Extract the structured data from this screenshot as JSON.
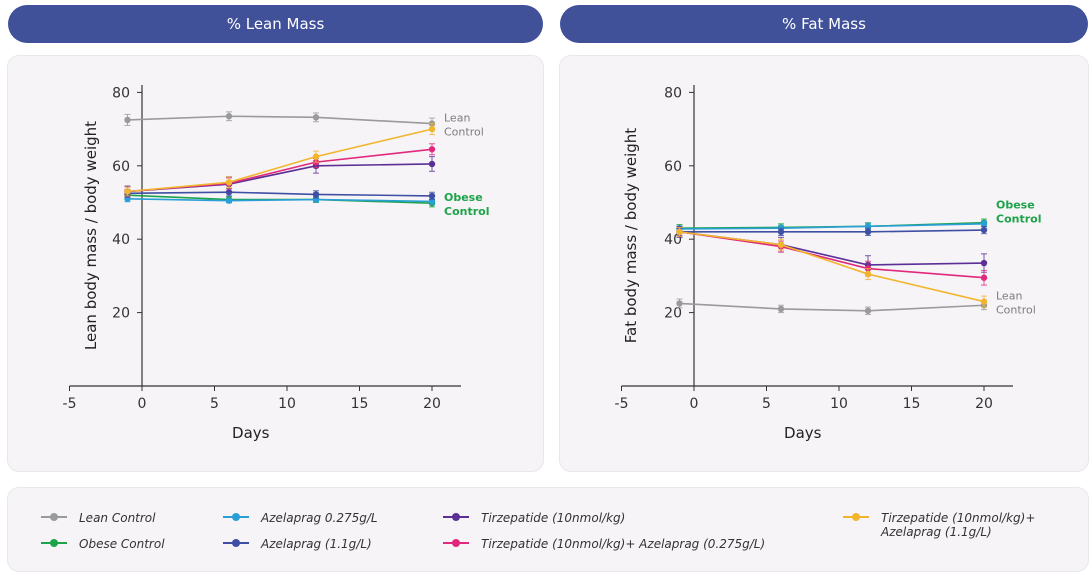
{
  "banners": {
    "left": "% Lean Mass",
    "right": "% Fat Mass"
  },
  "chart_data": [
    {
      "type": "line",
      "title": "% Lean Mass",
      "xlabel": "Days",
      "ylabel": "Lean body mass / body weight",
      "xlim": [
        -5,
        22
      ],
      "ylim": [
        0,
        82
      ],
      "xticks": [
        "-5",
        "0",
        "5",
        "10",
        "15",
        "20"
      ],
      "yticks": [
        "20",
        "40",
        "60",
        "80"
      ],
      "x": [
        -1,
        6,
        12,
        20
      ],
      "annotations": [
        {
          "text": "Lean\nControl",
          "series": "Lean Control"
        },
        {
          "text": "Obese\nControl",
          "series": "Obese Control"
        }
      ],
      "series": [
        {
          "name": "Lean Control",
          "color": "#9a9a9a",
          "values": [
            72.5,
            73.5,
            73.2,
            71.5
          ],
          "errors": [
            1.5,
            1.2,
            1.2,
            1.5
          ]
        },
        {
          "name": "Obese Control",
          "color": "#1da34a",
          "values": [
            52.0,
            50.8,
            50.8,
            49.8
          ],
          "errors": [
            1.2,
            0.8,
            0.8,
            1.0
          ]
        },
        {
          "name": "Azelaprag 0.275g/L",
          "color": "#2a9fd6",
          "values": [
            51.0,
            50.5,
            50.8,
            50.3
          ],
          "errors": [
            0.8,
            0.6,
            0.6,
            0.8
          ]
        },
        {
          "name": "Azelaprag (1.1g/L)",
          "color": "#3f4fa3",
          "values": [
            52.5,
            52.8,
            52.2,
            51.8
          ],
          "errors": [
            1.0,
            1.0,
            1.0,
            1.0
          ]
        },
        {
          "name": "Tirzepatide (10nmol/kg)",
          "color": "#5b2f96",
          "values": [
            53.0,
            55.0,
            60.0,
            60.5
          ],
          "errors": [
            1.5,
            2.0,
            2.0,
            2.0
          ]
        },
        {
          "name": "Tirzepatide (10nmol/kg)+ Azelaprag (0.275g/L)",
          "color": "#e0297c",
          "values": [
            53.0,
            55.2,
            61.0,
            64.5
          ],
          "errors": [
            1.2,
            1.5,
            1.5,
            1.5
          ]
        },
        {
          "name": "Tirzepatide (10nmol/kg)+ Azelaprag (1.1g/L)",
          "color": "#f2b52e",
          "values": [
            53.0,
            55.5,
            62.5,
            70.0
          ],
          "errors": [
            1.2,
            1.5,
            1.5,
            1.5
          ]
        }
      ]
    },
    {
      "type": "line",
      "title": "% Fat Mass",
      "xlabel": "Days",
      "ylabel": "Fat body mass / body weight",
      "xlim": [
        -5,
        22
      ],
      "ylim": [
        0,
        82
      ],
      "xticks": [
        "-5",
        "0",
        "5",
        "10",
        "15",
        "20"
      ],
      "yticks": [
        "20",
        "40",
        "60",
        "80"
      ],
      "x": [
        -1,
        6,
        12,
        20
      ],
      "annotations": [
        {
          "text": "Obese\nControl",
          "series": "Obese Control"
        },
        {
          "text": "Lean\nControl",
          "series": "Lean Control"
        }
      ],
      "series": [
        {
          "name": "Lean Control",
          "color": "#9a9a9a",
          "values": [
            22.5,
            21.0,
            20.5,
            22.0
          ],
          "errors": [
            1.2,
            1.0,
            1.0,
            1.2
          ]
        },
        {
          "name": "Obese Control",
          "color": "#1da34a",
          "values": [
            43.0,
            43.2,
            43.5,
            44.5
          ],
          "errors": [
            1.0,
            1.0,
            1.0,
            1.0
          ]
        },
        {
          "name": "Azelaprag 0.275g/L",
          "color": "#2a9fd6",
          "values": [
            42.8,
            43.0,
            43.5,
            44.2
          ],
          "errors": [
            0.8,
            0.8,
            0.8,
            0.8
          ]
        },
        {
          "name": "Azelaprag (1.1g/L)",
          "color": "#3f4fa3",
          "values": [
            42.0,
            42.0,
            42.0,
            42.5
          ],
          "errors": [
            1.0,
            1.0,
            1.0,
            1.0
          ]
        },
        {
          "name": "Tirzepatide (10nmol/kg)",
          "color": "#5b2f96",
          "values": [
            42.0,
            38.5,
            33.0,
            33.5
          ],
          "errors": [
            1.5,
            2.0,
            2.5,
            2.5
          ]
        },
        {
          "name": "Tirzepatide (10nmol/kg)+ Azelaprag (0.275g/L)",
          "color": "#e0297c",
          "values": [
            42.0,
            38.0,
            32.0,
            29.5
          ],
          "errors": [
            1.2,
            1.5,
            2.0,
            2.0
          ]
        },
        {
          "name": "Tirzepatide (10nmol/kg)+ Azelaprag (1.1g/L)",
          "color": "#f2b52e",
          "values": [
            42.0,
            38.5,
            30.5,
            23.0
          ],
          "errors": [
            1.2,
            1.5,
            1.5,
            1.5
          ]
        }
      ]
    }
  ],
  "legend": {
    "items": [
      {
        "label": "Lean Control",
        "color": "#9a9a9a"
      },
      {
        "label": "Obese Control",
        "color": "#1da34a"
      },
      {
        "label": "Azelaprag 0.275g/L",
        "color": "#2a9fd6"
      },
      {
        "label": "Azelaprag (1.1g/L)",
        "color": "#3f4fa3"
      },
      {
        "label": "Tirzepatide (10nmol/kg)",
        "color": "#5b2f96"
      },
      {
        "label": "Tirzepatide (10nmol/kg)+ Azelaprag (0.275g/L)",
        "color": "#e0297c"
      },
      {
        "label": "Tirzepatide (10nmol/kg)+\nAzelaprag (1.1g/L)",
        "color": "#f2b52e"
      }
    ]
  }
}
